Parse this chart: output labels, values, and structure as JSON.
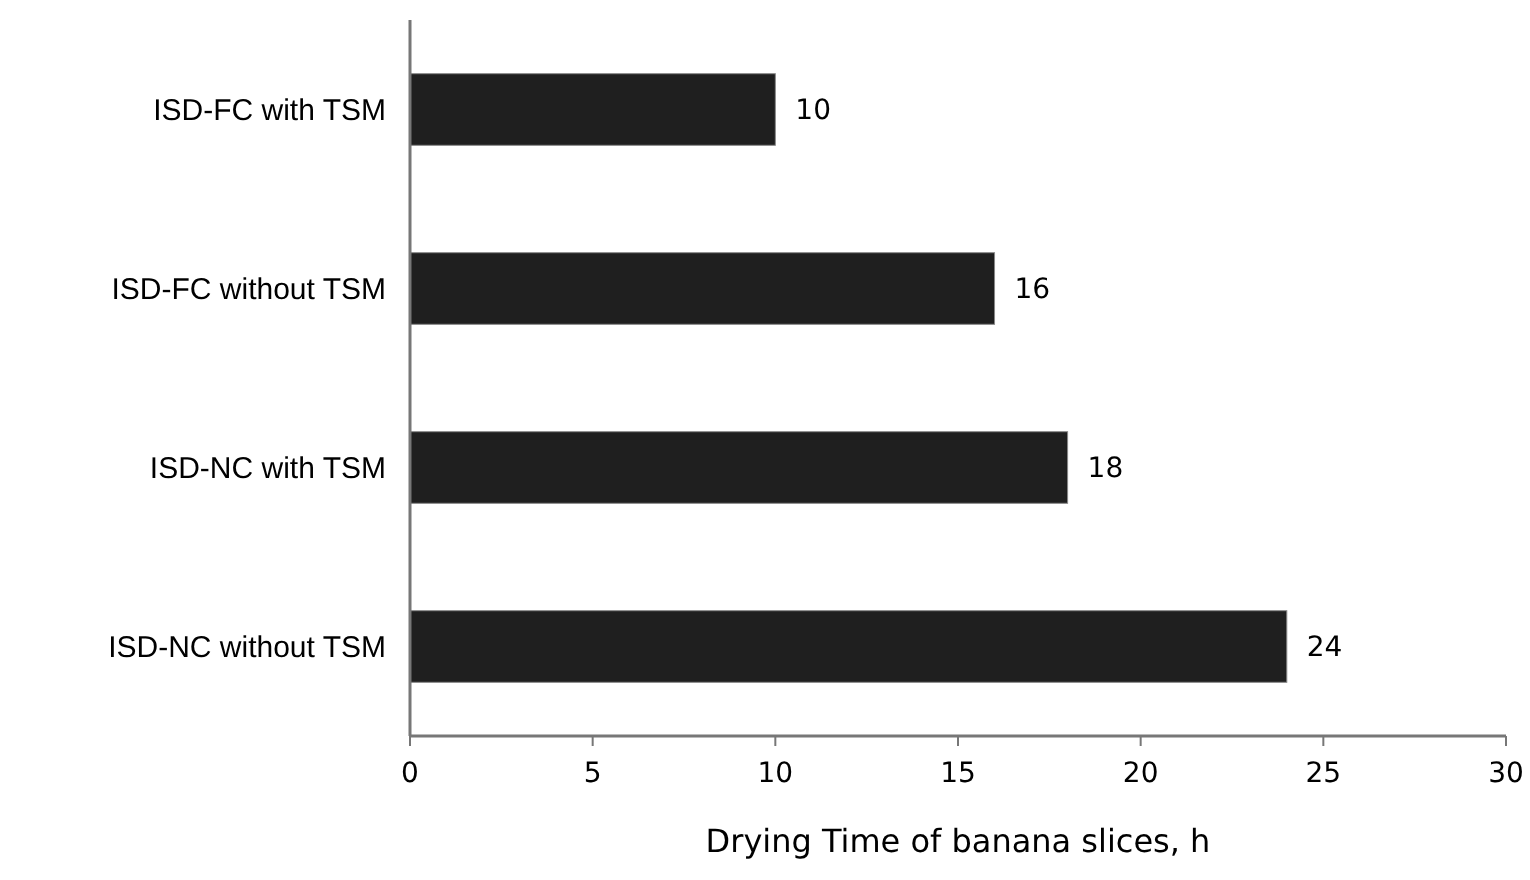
{
  "chart_data": {
    "type": "bar",
    "orientation": "horizontal",
    "xlabel": "Drying Time of banana slices, h",
    "categories": [
      "ISD-FC with TSM",
      "ISD-FC without TSM",
      "ISD-NC with TSM",
      "ISD-NC without TSM"
    ],
    "values": [
      10,
      16,
      18,
      24
    ],
    "color": "#1f1f1f",
    "xlim": [
      0,
      30
    ],
    "xticks": [
      0,
      5,
      10,
      15,
      20,
      25,
      30
    ],
    "data_labels": true,
    "grid": false
  }
}
